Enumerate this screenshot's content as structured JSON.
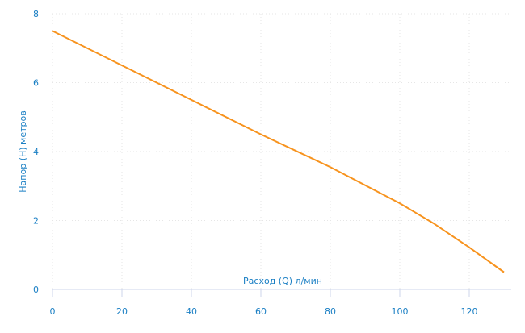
{
  "chart_data": {
    "type": "line",
    "title": "",
    "xlabel": "Расход (Q) л/мин",
    "ylabel": "Напор (H) метров",
    "xlim": [
      0,
      132
    ],
    "ylim": [
      0,
      8
    ],
    "xticks": [
      0,
      20,
      40,
      60,
      80,
      100,
      120
    ],
    "yticks": [
      0,
      2,
      4,
      6,
      8
    ],
    "grid": true,
    "series": [
      {
        "color": "#f7931e",
        "x": [
          0,
          20,
          40,
          60,
          80,
          100,
          110,
          120,
          130
        ],
        "y": [
          7.5,
          6.5,
          5.5,
          4.5,
          3.55,
          2.5,
          1.9,
          1.22,
          0.5
        ]
      }
    ],
    "colors": {
      "axis_text": "#1a7fc4",
      "axis_line": "#ccd6eb",
      "grid": "#e6e6e6"
    }
  }
}
